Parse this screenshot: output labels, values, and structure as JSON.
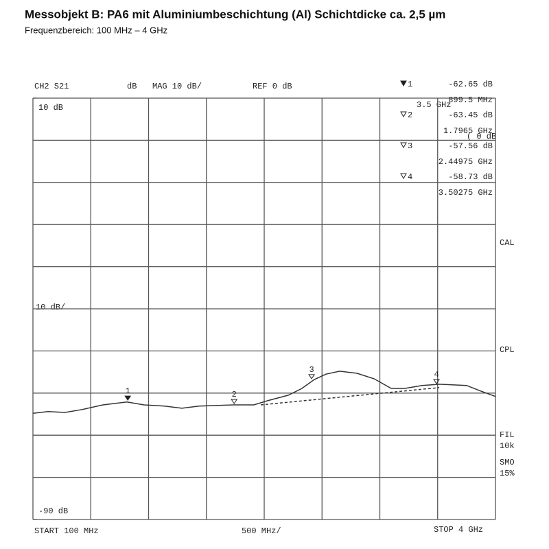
{
  "chart_data": {
    "type": "line",
    "title": "Messobjekt B: PA6 mit Aluminiumbeschichtung (Al) Schichtdicke ca. 2,5 µm",
    "subtitle": "Frequenzbereich:  100 MHz – 4 GHz",
    "header": [
      "CH2 S21",
      "dB",
      "MAG 10 dB/",
      "REF 0 dB"
    ],
    "xlim": [
      100,
      4000
    ],
    "ylim": [
      -90,
      10
    ],
    "yticks": [
      {
        "value": 10,
        "label": "10 dB"
      },
      {
        "value": -90,
        "label": "-90 dB"
      }
    ],
    "y_scale_label": "10 dB/",
    "start_label": "START  100 MHz",
    "x_div_label": "500 MHz/",
    "stop_label": "STOP 4 GHz",
    "side_labels": [
      "CAL",
      "CPL",
      "FIL",
      "10k",
      "SMO",
      "15%"
    ],
    "overlay_texts": [
      "3.5 GHz",
      "( 0 dB"
    ],
    "series": [
      {
        "color": "#333333",
        "dashed": false,
        "x": [
          100,
          227,
          372,
          517,
          690,
          893,
          1037,
          1211,
          1356,
          1500,
          1790,
          1963,
          2079,
          2253,
          2368,
          2472,
          2571,
          2687,
          2831,
          2976,
          3121,
          3236,
          3381,
          3526,
          3757,
          3873,
          4000
        ],
        "values": [
          -64.8,
          -64.4,
          -64.6,
          -63.9,
          -62.8,
          -62.1,
          -62.8,
          -63.1,
          -63.6,
          -63.1,
          -62.8,
          -62.8,
          -61.8,
          -60.5,
          -58.9,
          -56.8,
          -55.5,
          -54.8,
          -55.3,
          -56.6,
          -58.9,
          -58.9,
          -58.2,
          -57.9,
          -58.2,
          -59.5,
          -60.8
        ]
      },
      {
        "color": "#333333",
        "dashed": true,
        "x": [
          2021,
          3526
        ],
        "values": [
          -62.8,
          -58.7
        ]
      }
    ],
    "markers": [
      {
        "label": "1",
        "x": 899.5,
        "x_label": "899.5 MHz",
        "y": -62.65,
        "y_label": "-62.65 dB",
        "active": true
      },
      {
        "label": "2",
        "x": 1796.5,
        "x_label": "1.7965 GHz",
        "y": -63.45,
        "y_label": "-63.45 dB",
        "active": false
      },
      {
        "label": "3",
        "x": 2449.75,
        "x_label": "2.44975 GHz",
        "y": -57.56,
        "y_label": "-57.56 dB",
        "active": false
      },
      {
        "label": "4",
        "x": 3502.75,
        "x_label": "3.50275 GHz",
        "y": -58.73,
        "y_label": "-58.73 dB",
        "active": false
      }
    ]
  }
}
